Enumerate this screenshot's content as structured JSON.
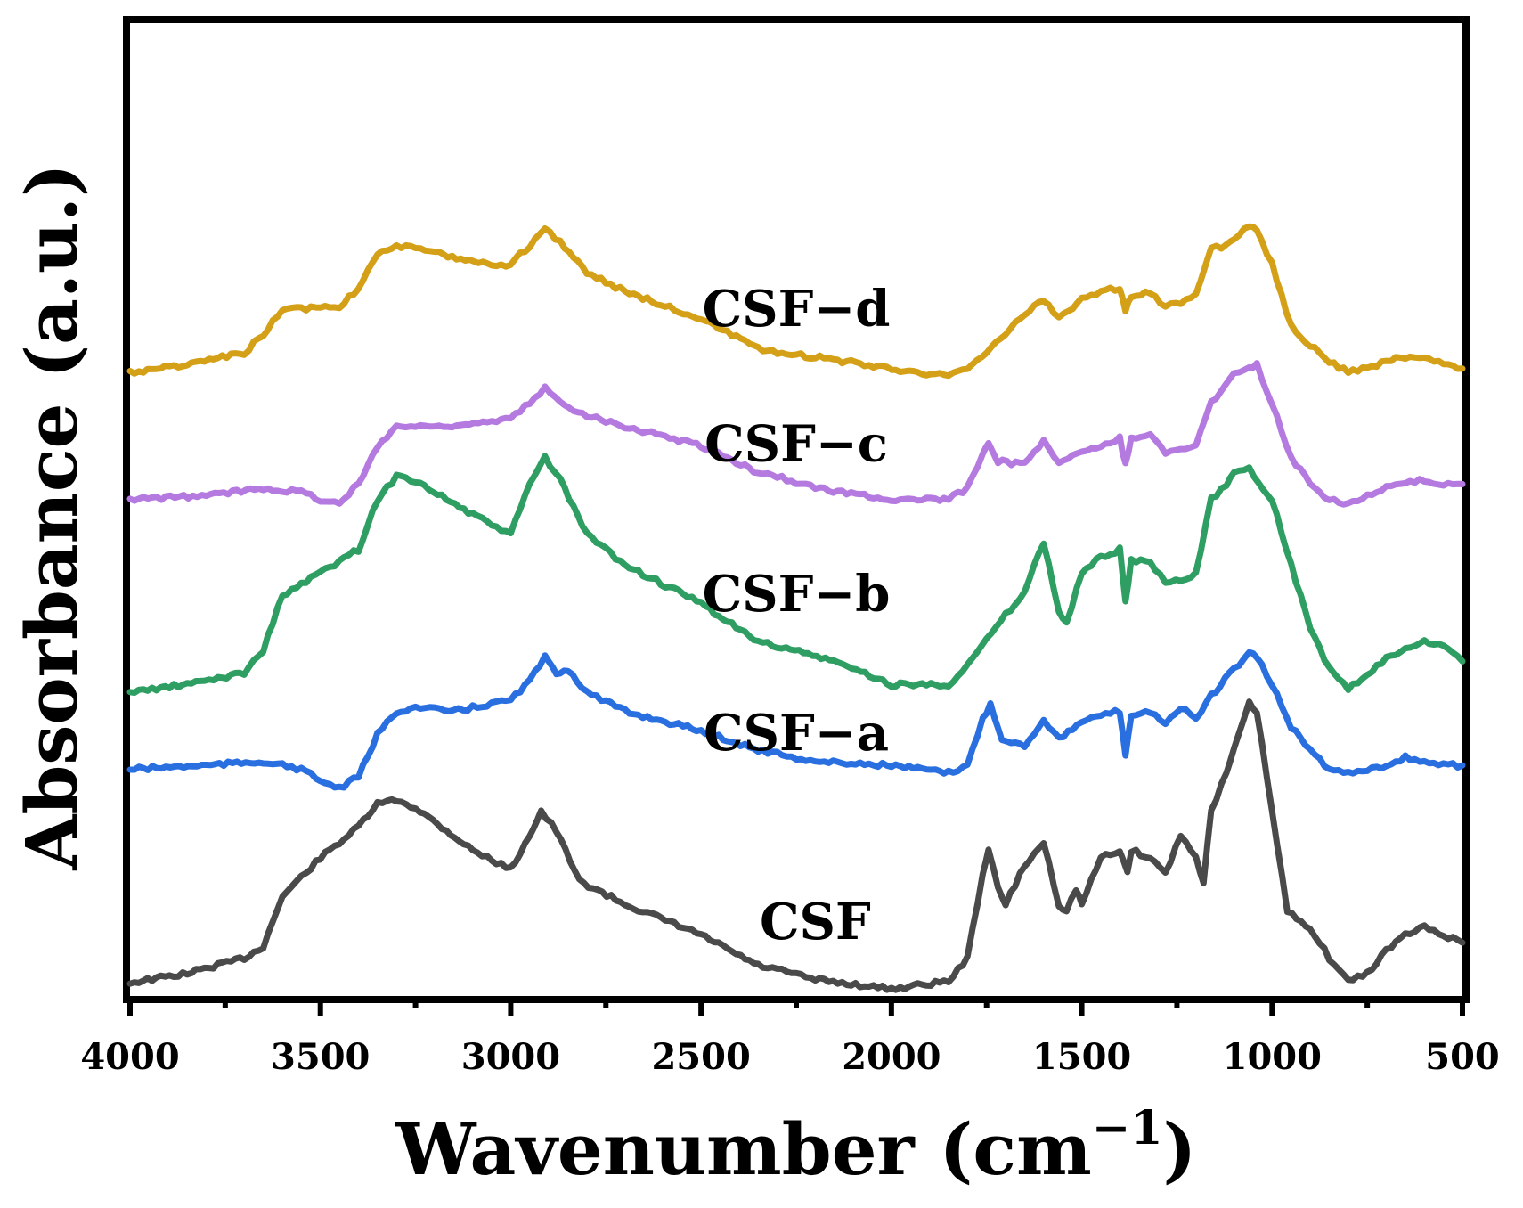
{
  "chart_data": {
    "type": "line",
    "title": "",
    "xlabel": "Wavenumber (cm",
    "xlabel_sup": "−1",
    "xlabel_close": ")",
    "ylabel": "Absorbance (a.u.)",
    "xlim": [
      4000,
      500
    ],
    "x_reversed": true,
    "ylim": [
      0,
      10
    ],
    "y_ticks_shown": false,
    "grid": false,
    "x_ticks": [
      4000,
      3500,
      3000,
      2500,
      2000,
      1500,
      1000,
      500
    ],
    "x_tick_labels": [
      "4000",
      "3500",
      "3000",
      "2500",
      "2000",
      "1500",
      "1000",
      "500"
    ],
    "series": [
      {
        "name": "CSF",
        "label": "CSF",
        "color": "#4a4a4a",
        "label_x": 2200,
        "label_y": 0.65,
        "points": [
          [
            4000,
            0.08
          ],
          [
            3850,
            0.2
          ],
          [
            3700,
            0.4
          ],
          [
            3650,
            0.55
          ],
          [
            3600,
            1.2
          ],
          [
            3500,
            1.7
          ],
          [
            3400,
            2.1
          ],
          [
            3350,
            2.4
          ],
          [
            3300,
            2.45
          ],
          [
            3250,
            2.35
          ],
          [
            3100,
            1.8
          ],
          [
            3000,
            1.55
          ],
          [
            2950,
            2.0
          ],
          [
            2920,
            2.3
          ],
          [
            2880,
            2.05
          ],
          [
            2820,
            1.4
          ],
          [
            2700,
            1.1
          ],
          [
            2500,
            0.7
          ],
          [
            2350,
            0.3
          ],
          [
            2300,
            0.25
          ],
          [
            2200,
            0.12
          ],
          [
            2000,
            0.0
          ],
          [
            1850,
            0.1
          ],
          [
            1800,
            0.4
          ],
          [
            1760,
            1.5
          ],
          [
            1745,
            1.8
          ],
          [
            1720,
            1.3
          ],
          [
            1700,
            1.1
          ],
          [
            1650,
            1.6
          ],
          [
            1600,
            1.9
          ],
          [
            1560,
            1.1
          ],
          [
            1540,
            1.0
          ],
          [
            1515,
            1.3
          ],
          [
            1500,
            1.1
          ],
          [
            1450,
            1.7
          ],
          [
            1400,
            1.8
          ],
          [
            1380,
            1.5
          ],
          [
            1370,
            1.8
          ],
          [
            1320,
            1.7
          ],
          [
            1280,
            1.5
          ],
          [
            1240,
            2.0
          ],
          [
            1200,
            1.7
          ],
          [
            1180,
            1.4
          ],
          [
            1160,
            2.3
          ],
          [
            1120,
            2.8
          ],
          [
            1100,
            3.1
          ],
          [
            1060,
            3.7
          ],
          [
            1040,
            3.6
          ],
          [
            1000,
            2.3
          ],
          [
            960,
            1.0
          ],
          [
            900,
            0.8
          ],
          [
            850,
            0.4
          ],
          [
            800,
            0.1
          ],
          [
            750,
            0.2
          ],
          [
            700,
            0.5
          ],
          [
            650,
            0.7
          ],
          [
            600,
            0.8
          ],
          [
            550,
            0.7
          ],
          [
            500,
            0.6
          ]
        ]
      },
      {
        "name": "CSF-a",
        "label": "CSF−a",
        "color": "#2a6fe0",
        "label_x": 2250,
        "label_y": 3.1,
        "points": [
          [
            4000,
            2.85
          ],
          [
            3800,
            2.9
          ],
          [
            3650,
            2.95
          ],
          [
            3550,
            2.85
          ],
          [
            3500,
            2.7
          ],
          [
            3450,
            2.6
          ],
          [
            3400,
            2.75
          ],
          [
            3350,
            3.3
          ],
          [
            3300,
            3.6
          ],
          [
            3250,
            3.65
          ],
          [
            3150,
            3.6
          ],
          [
            3050,
            3.7
          ],
          [
            3000,
            3.75
          ],
          [
            2950,
            4.0
          ],
          [
            2910,
            4.3
          ],
          [
            2880,
            4.1
          ],
          [
            2850,
            4.15
          ],
          [
            2800,
            3.85
          ],
          [
            2700,
            3.6
          ],
          [
            2500,
            3.35
          ],
          [
            2350,
            3.1
          ],
          [
            2300,
            3.05
          ],
          [
            2200,
            2.95
          ],
          [
            2000,
            2.9
          ],
          [
            1850,
            2.8
          ],
          [
            1800,
            2.9
          ],
          [
            1760,
            3.5
          ],
          [
            1740,
            3.7
          ],
          [
            1710,
            3.25
          ],
          [
            1650,
            3.15
          ],
          [
            1600,
            3.5
          ],
          [
            1560,
            3.25
          ],
          [
            1500,
            3.45
          ],
          [
            1450,
            3.55
          ],
          [
            1400,
            3.6
          ],
          [
            1385,
            3.05
          ],
          [
            1370,
            3.55
          ],
          [
            1320,
            3.6
          ],
          [
            1280,
            3.45
          ],
          [
            1240,
            3.65
          ],
          [
            1200,
            3.5
          ],
          [
            1160,
            3.8
          ],
          [
            1100,
            4.15
          ],
          [
            1060,
            4.35
          ],
          [
            1040,
            4.3
          ],
          [
            1000,
            3.95
          ],
          [
            950,
            3.4
          ],
          [
            900,
            3.1
          ],
          [
            850,
            2.85
          ],
          [
            800,
            2.8
          ],
          [
            750,
            2.85
          ],
          [
            700,
            2.9
          ],
          [
            650,
            3.0
          ],
          [
            600,
            2.95
          ],
          [
            550,
            2.9
          ],
          [
            500,
            2.9
          ]
        ]
      },
      {
        "name": "CSF-b",
        "label": "CSF−b",
        "color": "#2e9e62",
        "label_x": 2250,
        "label_y": 4.9,
        "points": [
          [
            4000,
            3.85
          ],
          [
            3850,
            3.95
          ],
          [
            3700,
            4.1
          ],
          [
            3650,
            4.4
          ],
          [
            3600,
            5.1
          ],
          [
            3500,
            5.4
          ],
          [
            3400,
            5.7
          ],
          [
            3350,
            6.35
          ],
          [
            3300,
            6.65
          ],
          [
            3250,
            6.6
          ],
          [
            3100,
            6.15
          ],
          [
            3000,
            5.9
          ],
          [
            2950,
            6.55
          ],
          [
            2910,
            6.9
          ],
          [
            2870,
            6.6
          ],
          [
            2800,
            5.9
          ],
          [
            2700,
            5.5
          ],
          [
            2500,
            5.0
          ],
          [
            2350,
            4.5
          ],
          [
            2300,
            4.45
          ],
          [
            2150,
            4.25
          ],
          [
            2000,
            3.95
          ],
          [
            1850,
            3.95
          ],
          [
            1800,
            4.2
          ],
          [
            1700,
            4.85
          ],
          [
            1650,
            5.15
          ],
          [
            1600,
            5.8
          ],
          [
            1560,
            4.9
          ],
          [
            1540,
            4.75
          ],
          [
            1500,
            5.4
          ],
          [
            1450,
            5.6
          ],
          [
            1400,
            5.7
          ],
          [
            1385,
            5.0
          ],
          [
            1370,
            5.55
          ],
          [
            1320,
            5.55
          ],
          [
            1280,
            5.25
          ],
          [
            1240,
            5.3
          ],
          [
            1200,
            5.4
          ],
          [
            1160,
            6.35
          ],
          [
            1120,
            6.55
          ],
          [
            1100,
            6.7
          ],
          [
            1060,
            6.75
          ],
          [
            1000,
            6.35
          ],
          [
            950,
            5.5
          ],
          [
            900,
            4.7
          ],
          [
            850,
            4.15
          ],
          [
            800,
            3.9
          ],
          [
            750,
            4.05
          ],
          [
            700,
            4.3
          ],
          [
            650,
            4.4
          ],
          [
            600,
            4.5
          ],
          [
            550,
            4.45
          ],
          [
            500,
            4.25
          ]
        ]
      },
      {
        "name": "CSF-c",
        "label": "CSF−c",
        "color": "#b57ae0",
        "label_x": 2250,
        "label_y": 6.85,
        "points": [
          [
            4000,
            6.35
          ],
          [
            3800,
            6.4
          ],
          [
            3650,
            6.5
          ],
          [
            3550,
            6.45
          ],
          [
            3500,
            6.35
          ],
          [
            3450,
            6.3
          ],
          [
            3400,
            6.55
          ],
          [
            3350,
            7.05
          ],
          [
            3300,
            7.3
          ],
          [
            3200,
            7.3
          ],
          [
            3050,
            7.35
          ],
          [
            3000,
            7.4
          ],
          [
            2950,
            7.6
          ],
          [
            2910,
            7.8
          ],
          [
            2870,
            7.6
          ],
          [
            2800,
            7.45
          ],
          [
            2700,
            7.3
          ],
          [
            2500,
            7.05
          ],
          [
            2350,
            6.7
          ],
          [
            2300,
            6.65
          ],
          [
            2200,
            6.5
          ],
          [
            2000,
            6.35
          ],
          [
            1850,
            6.35
          ],
          [
            1800,
            6.5
          ],
          [
            1760,
            6.95
          ],
          [
            1745,
            7.1
          ],
          [
            1720,
            6.85
          ],
          [
            1650,
            6.8
          ],
          [
            1600,
            7.1
          ],
          [
            1560,
            6.85
          ],
          [
            1500,
            6.95
          ],
          [
            1450,
            7.05
          ],
          [
            1400,
            7.15
          ],
          [
            1385,
            6.8
          ],
          [
            1370,
            7.15
          ],
          [
            1320,
            7.2
          ],
          [
            1280,
            6.95
          ],
          [
            1240,
            7.0
          ],
          [
            1200,
            7.05
          ],
          [
            1160,
            7.6
          ],
          [
            1100,
            8.0
          ],
          [
            1060,
            8.05
          ],
          [
            1040,
            8.1
          ],
          [
            1000,
            7.6
          ],
          [
            950,
            6.9
          ],
          [
            900,
            6.55
          ],
          [
            850,
            6.35
          ],
          [
            800,
            6.3
          ],
          [
            750,
            6.4
          ],
          [
            700,
            6.5
          ],
          [
            650,
            6.55
          ],
          [
            600,
            6.6
          ],
          [
            550,
            6.55
          ],
          [
            500,
            6.55
          ]
        ]
      },
      {
        "name": "CSF-d",
        "label": "CSF−d",
        "color": "#d4a017",
        "label_x": 2250,
        "label_y": 8.6,
        "points": [
          [
            4000,
            8.0
          ],
          [
            3850,
            8.1
          ],
          [
            3700,
            8.25
          ],
          [
            3650,
            8.5
          ],
          [
            3600,
            8.8
          ],
          [
            3500,
            8.85
          ],
          [
            3450,
            8.85
          ],
          [
            3400,
            9.1
          ],
          [
            3350,
            9.55
          ],
          [
            3300,
            9.65
          ],
          [
            3200,
            9.55
          ],
          [
            3050,
            9.4
          ],
          [
            3000,
            9.4
          ],
          [
            2950,
            9.65
          ],
          [
            2910,
            9.85
          ],
          [
            2870,
            9.7
          ],
          [
            2800,
            9.3
          ],
          [
            2700,
            9.05
          ],
          [
            2500,
            8.7
          ],
          [
            2350,
            8.3
          ],
          [
            2300,
            8.25
          ],
          [
            2200,
            8.2
          ],
          [
            2000,
            8.05
          ],
          [
            1850,
            7.95
          ],
          [
            1800,
            8.05
          ],
          [
            1700,
            8.5
          ],
          [
            1650,
            8.75
          ],
          [
            1600,
            8.95
          ],
          [
            1560,
            8.7
          ],
          [
            1500,
            8.95
          ],
          [
            1450,
            9.05
          ],
          [
            1400,
            9.1
          ],
          [
            1385,
            8.8
          ],
          [
            1370,
            9.0
          ],
          [
            1320,
            9.05
          ],
          [
            1280,
            8.85
          ],
          [
            1240,
            8.9
          ],
          [
            1200,
            9.0
          ],
          [
            1160,
            9.6
          ],
          [
            1120,
            9.65
          ],
          [
            1100,
            9.75
          ],
          [
            1060,
            9.9
          ],
          [
            1040,
            9.85
          ],
          [
            1000,
            9.4
          ],
          [
            950,
            8.6
          ],
          [
            900,
            8.35
          ],
          [
            850,
            8.15
          ],
          [
            800,
            8.0
          ],
          [
            750,
            8.05
          ],
          [
            700,
            8.15
          ],
          [
            650,
            8.2
          ],
          [
            600,
            8.2
          ],
          [
            550,
            8.1
          ],
          [
            500,
            8.05
          ]
        ]
      }
    ]
  }
}
